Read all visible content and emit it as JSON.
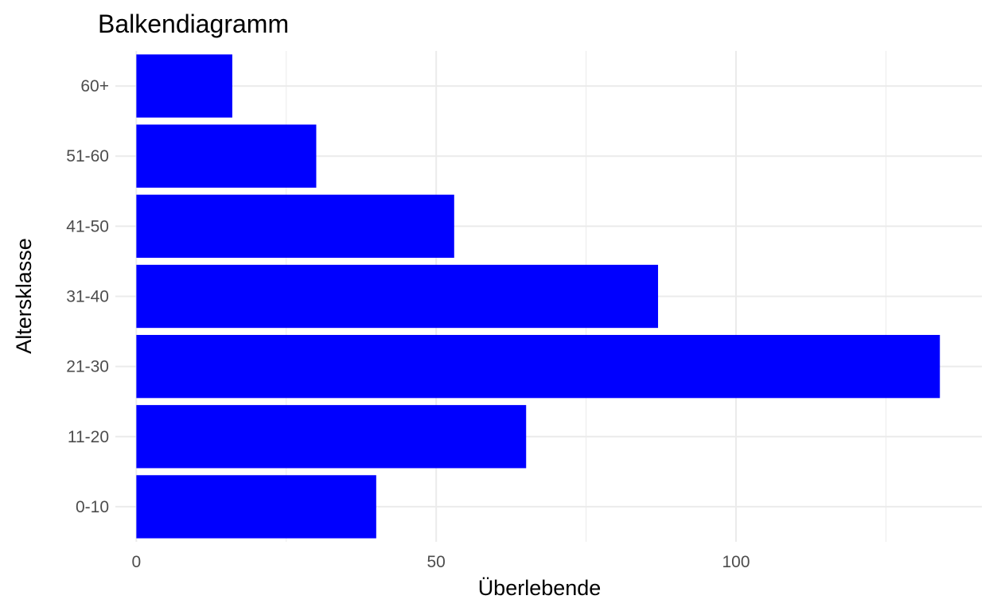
{
  "chart_data": {
    "type": "bar",
    "orientation": "horizontal",
    "title": "Balkendiagramm",
    "xlabel": "Überlebende",
    "ylabel": "Altersklasse",
    "categories": [
      "0-10",
      "11-20",
      "21-30",
      "31-40",
      "41-50",
      "51-60",
      "60+"
    ],
    "values": [
      40,
      65,
      134,
      87,
      53,
      30,
      16
    ],
    "xlim": [
      -3.5,
      141
    ],
    "x_ticks": [
      0,
      50,
      100
    ],
    "x_minor_ticks": [
      25,
      75,
      125
    ],
    "grid": true,
    "legend": "none",
    "bar_color": "#0000ff",
    "grid_color": "#ebebeb",
    "background": "#ffffff"
  }
}
